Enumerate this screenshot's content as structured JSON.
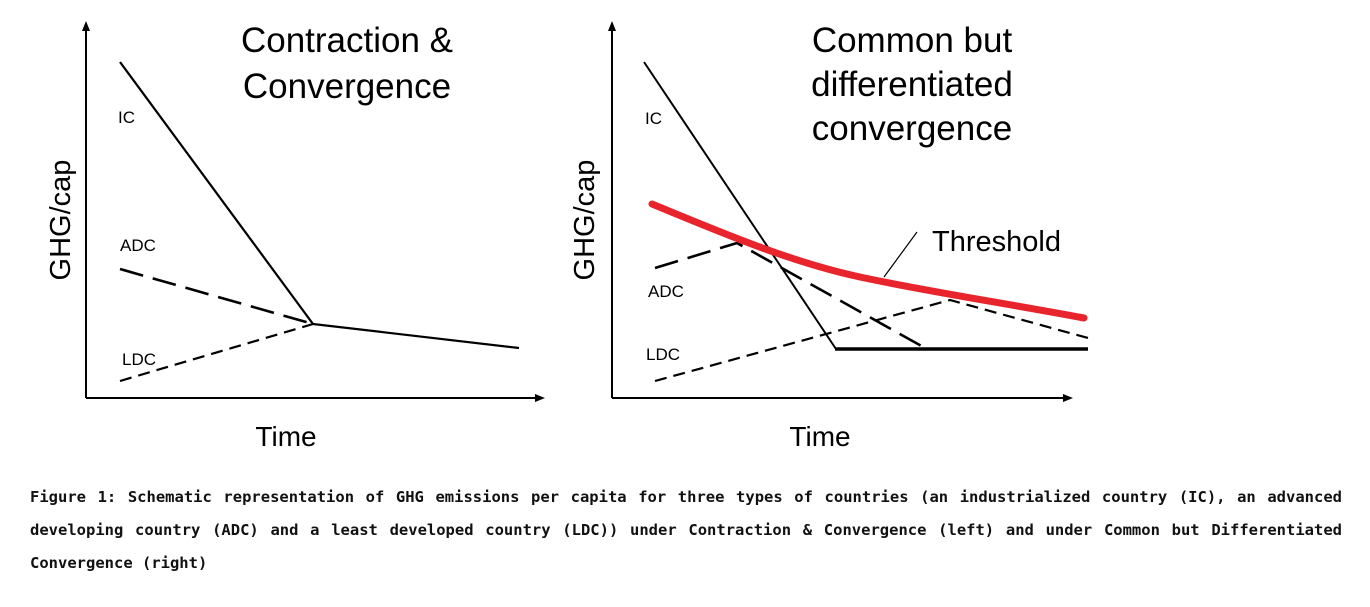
{
  "panels": [
    {
      "title_lines": [
        "Contraction &",
        "Convergence"
      ],
      "y_axis_label": "GHG/cap",
      "x_axis_label": "Time",
      "curve_labels": {
        "ic": "IC",
        "adc": "ADC",
        "ldc": "LDC"
      }
    },
    {
      "title_lines": [
        "Common but",
        "differentiated",
        "convergence"
      ],
      "y_axis_label": "GHG/cap",
      "x_axis_label": "Time",
      "curve_labels": {
        "ic": "IC",
        "adc": "ADC",
        "ldc": "LDC"
      },
      "threshold_label": "Threshold"
    }
  ],
  "colors": {
    "threshold": "#e8242c",
    "lines": "#000000"
  },
  "caption": "Figure 1: Schematic representation of GHG emissions per capita for three types of countries (an industrialized country (IC), an advanced developing country (ADC) and a least developed country (LDC)) under Contraction & Convergence (left) and under Common but Differentiated Convergence (right)"
}
